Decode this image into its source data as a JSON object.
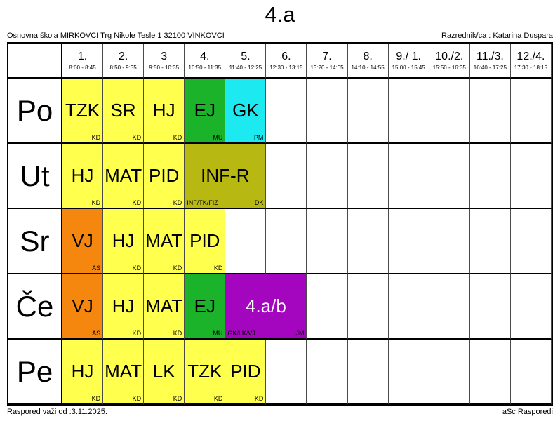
{
  "title": "4.a",
  "header": {
    "school": "Osnovna škola MIRKOVCI Trg Nikole Tesle 1 32100 VINKOVCI",
    "class_teacher": "Razrednik/ca : Katarina Duspara"
  },
  "footer": {
    "valid_from": "Raspored važi od :3.11.2025.",
    "app": "aSc Rasporedi"
  },
  "colors": {
    "yellow": "#ffff4d",
    "green": "#1bb32a",
    "cyan": "#1ce9f0",
    "olive": "#b7b811",
    "orange": "#f5870f",
    "purple": "#a405be"
  },
  "periods": [
    {
      "num": "1.",
      "time": "8:00 - 8:45"
    },
    {
      "num": "2.",
      "time": "8:50 - 9:35"
    },
    {
      "num": "3",
      "time": "9:50 - 10:35"
    },
    {
      "num": "4.",
      "time": "10:50 - 11:35"
    },
    {
      "num": "5.",
      "time": "11:40 - 12:25"
    },
    {
      "num": "6.",
      "time": "12:30 - 13:15"
    },
    {
      "num": "7.",
      "time": "13:20 - 14:05"
    },
    {
      "num": "8.",
      "time": "14:10 - 14:55"
    },
    {
      "num": "9./ 1.",
      "time": "15:00 - 15:45"
    },
    {
      "num": "10./2.",
      "time": "15:50 - 16:35"
    },
    {
      "num": "11./3.",
      "time": "16:40 - 17:25"
    },
    {
      "num": "12./4.",
      "time": "17:30 - 18:15"
    }
  ],
  "days": [
    {
      "label": "Po",
      "lessons": [
        {
          "col": 1,
          "span": 1,
          "subject": "TZK",
          "group": "",
          "teacher": "KD",
          "color": "yellow"
        },
        {
          "col": 2,
          "span": 1,
          "subject": "SR",
          "group": "",
          "teacher": "KD",
          "color": "yellow"
        },
        {
          "col": 3,
          "span": 1,
          "subject": "HJ",
          "group": "",
          "teacher": "KD",
          "color": "yellow"
        },
        {
          "col": 4,
          "span": 1,
          "subject": "EJ",
          "group": "",
          "teacher": "MU",
          "color": "green"
        },
        {
          "col": 5,
          "span": 1,
          "subject": "GK",
          "group": "",
          "teacher": "PM",
          "color": "cyan"
        }
      ]
    },
    {
      "label": "Ut",
      "lessons": [
        {
          "col": 1,
          "span": 1,
          "subject": "HJ",
          "group": "",
          "teacher": "KD",
          "color": "yellow"
        },
        {
          "col": 2,
          "span": 1,
          "subject": "MAT",
          "group": "",
          "teacher": "KD",
          "color": "yellow"
        },
        {
          "col": 3,
          "span": 1,
          "subject": "PID",
          "group": "",
          "teacher": "KD",
          "color": "yellow"
        },
        {
          "col": 4,
          "span": 2,
          "subject": "INF-R",
          "group": "INF/TK/FIZ",
          "teacher": "DK",
          "color": "olive"
        }
      ]
    },
    {
      "label": "Sr",
      "lessons": [
        {
          "col": 1,
          "span": 1,
          "subject": "VJ",
          "group": "",
          "teacher": "AS",
          "color": "orange"
        },
        {
          "col": 2,
          "span": 1,
          "subject": "HJ",
          "group": "",
          "teacher": "KD",
          "color": "yellow"
        },
        {
          "col": 3,
          "span": 1,
          "subject": "MAT",
          "group": "",
          "teacher": "KD",
          "color": "yellow"
        },
        {
          "col": 4,
          "span": 1,
          "subject": "PID",
          "group": "",
          "teacher": "KD",
          "color": "yellow"
        }
      ]
    },
    {
      "label": "Če",
      "lessons": [
        {
          "col": 1,
          "span": 1,
          "subject": "VJ",
          "group": "",
          "teacher": "AS",
          "color": "orange"
        },
        {
          "col": 2,
          "span": 1,
          "subject": "HJ",
          "group": "",
          "teacher": "KD",
          "color": "yellow"
        },
        {
          "col": 3,
          "span": 1,
          "subject": "MAT",
          "group": "",
          "teacher": "KD",
          "color": "yellow"
        },
        {
          "col": 4,
          "span": 1,
          "subject": "EJ",
          "group": "",
          "teacher": "MU",
          "color": "green"
        },
        {
          "col": 5,
          "span": 2,
          "subject": "4.a/b",
          "group": "GK/LK/VJ",
          "teacher": "JM",
          "color": "purple",
          "text_color": "#ffffff"
        }
      ]
    },
    {
      "label": "Pe",
      "lessons": [
        {
          "col": 1,
          "span": 1,
          "subject": "HJ",
          "group": "",
          "teacher": "KD",
          "color": "yellow"
        },
        {
          "col": 2,
          "span": 1,
          "subject": "MAT",
          "group": "",
          "teacher": "KD",
          "color": "yellow"
        },
        {
          "col": 3,
          "span": 1,
          "subject": "LK",
          "group": "",
          "teacher": "KD",
          "color": "yellow"
        },
        {
          "col": 4,
          "span": 1,
          "subject": "TZK",
          "group": "",
          "teacher": "KD",
          "color": "yellow"
        },
        {
          "col": 5,
          "span": 1,
          "subject": "PID",
          "group": "",
          "teacher": "KD",
          "color": "yellow"
        }
      ]
    }
  ]
}
